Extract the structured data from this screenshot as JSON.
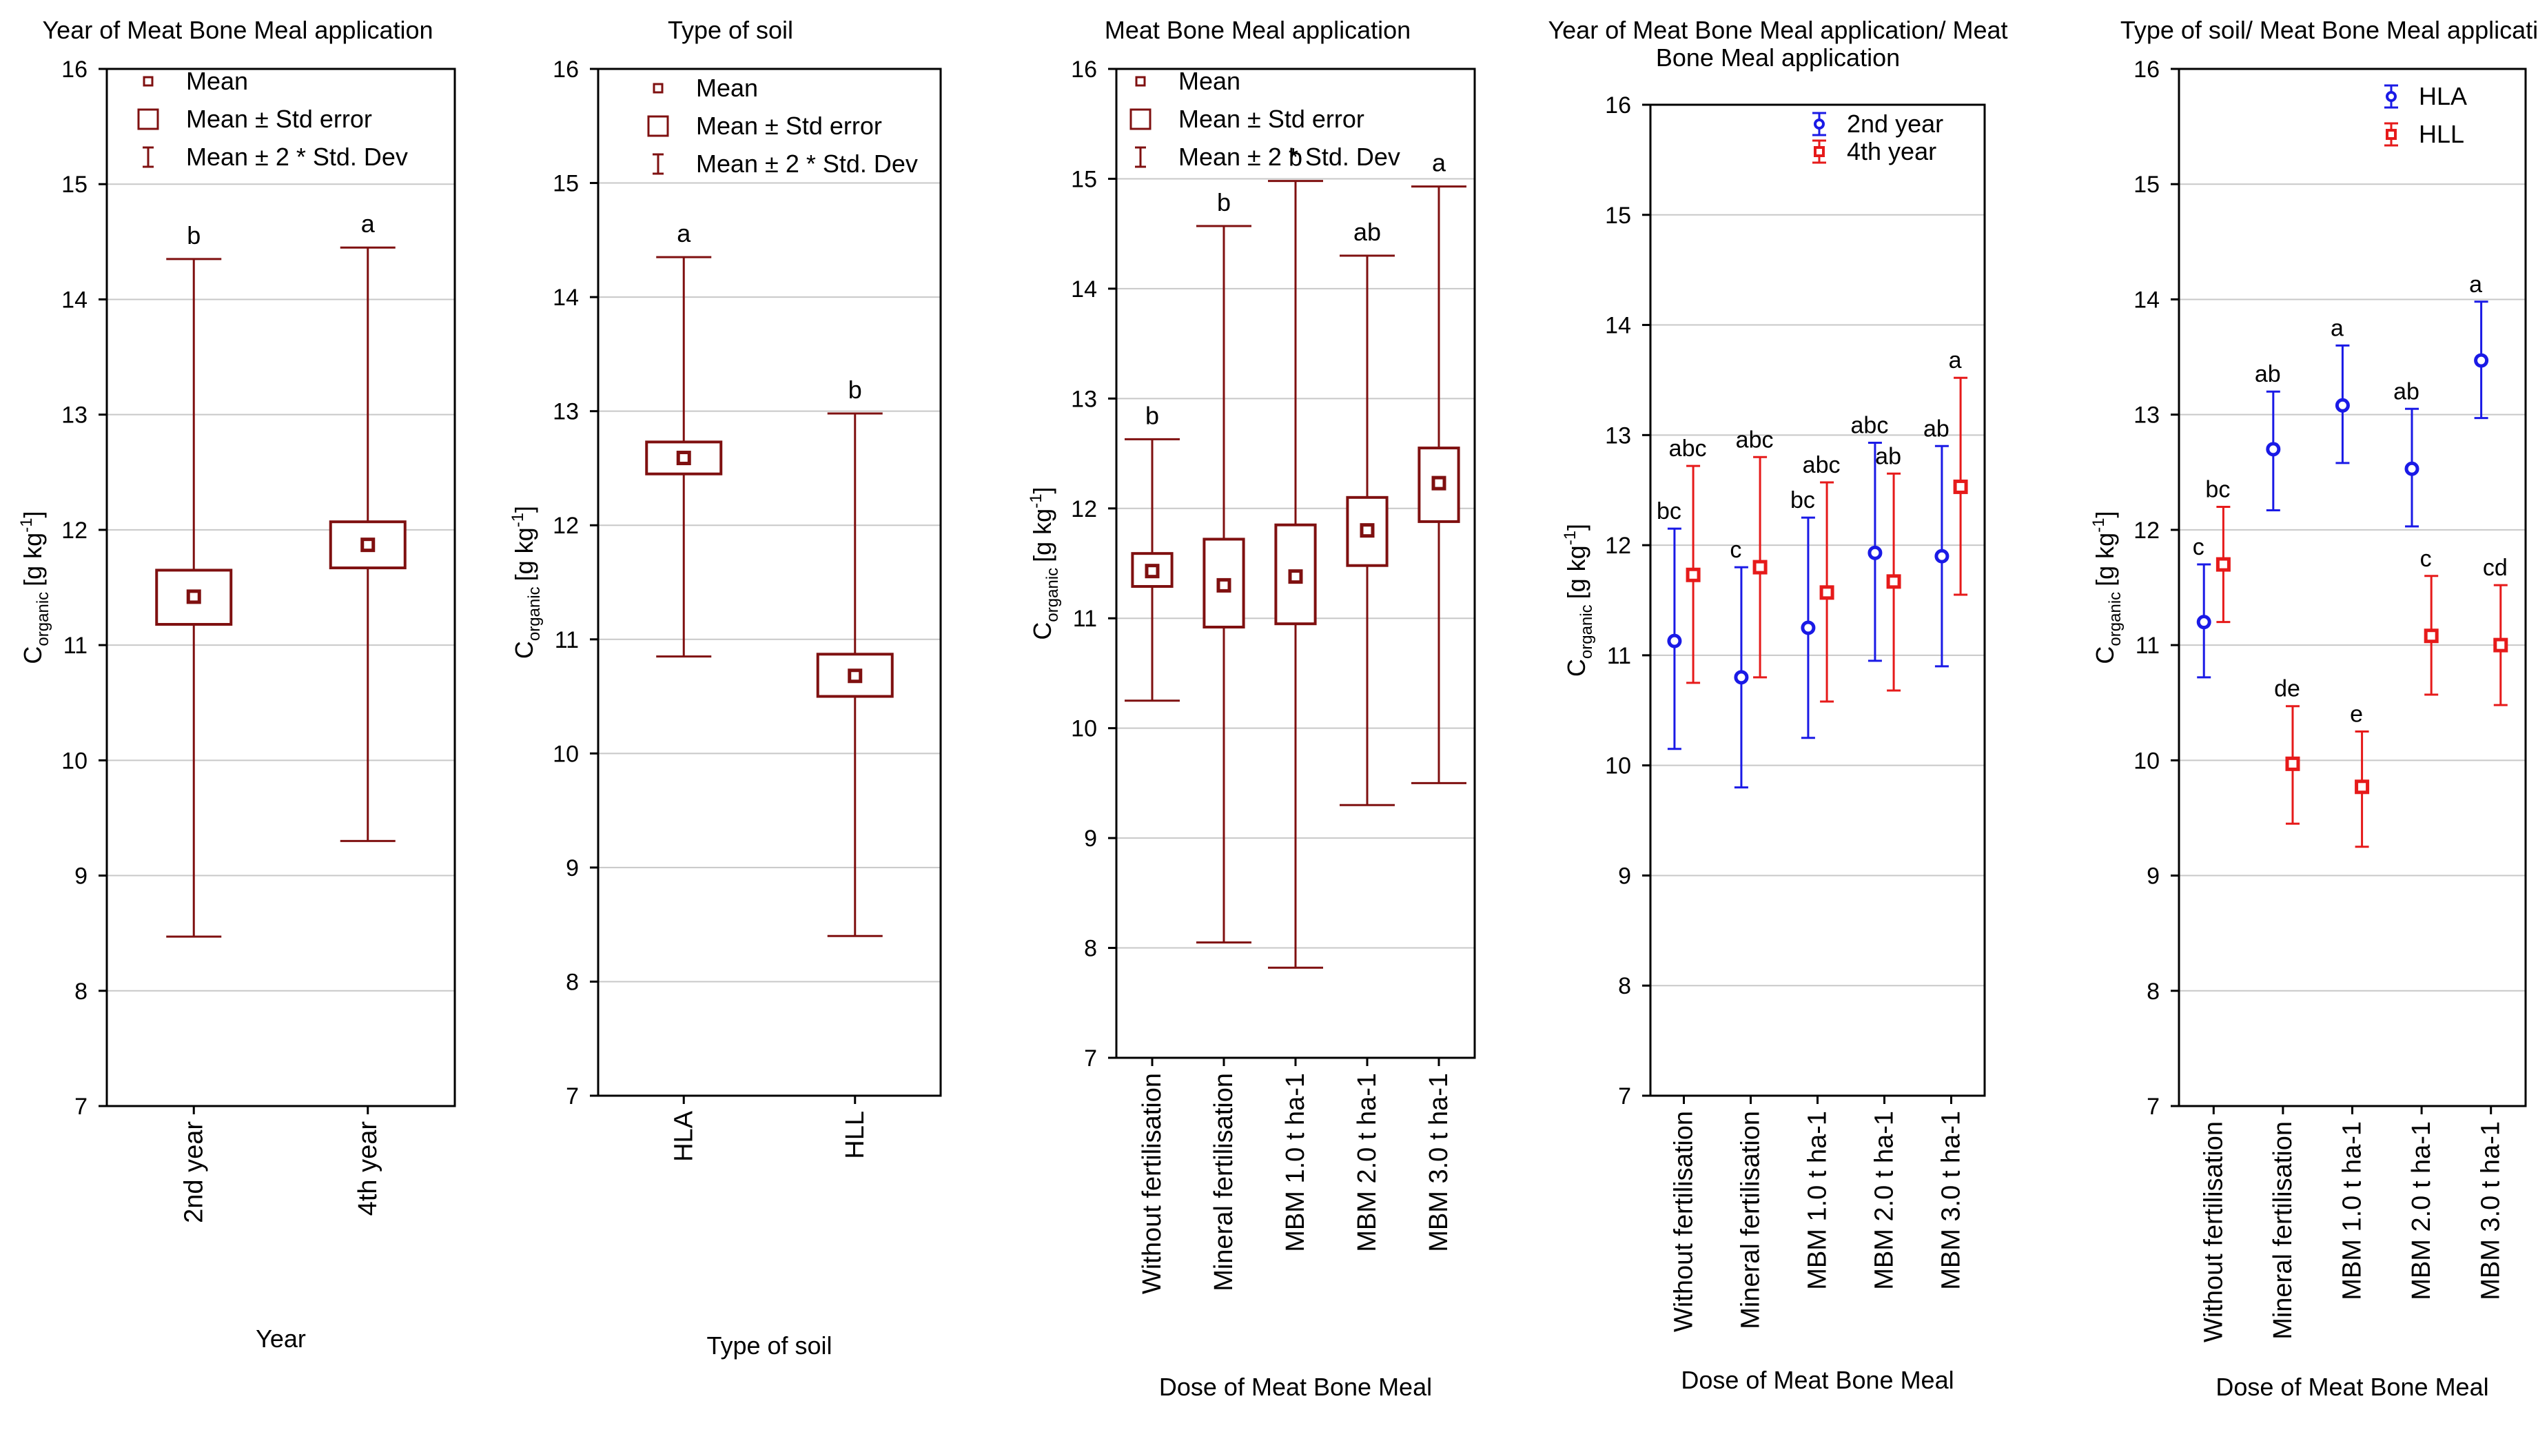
{
  "chart_data": [
    {
      "type": "box",
      "title": "Year of Meat Bone Meal application",
      "xlabel": "Year",
      "ylabel_main": "C",
      "ylabel_sub": "organic",
      "ylabel_unit": "[g kg",
      "ylabel_sup": "-1",
      "ylabel_close": "]",
      "ylim": [
        7,
        16
      ],
      "yticks": [
        7,
        8,
        9,
        10,
        11,
        12,
        13,
        14,
        15,
        16
      ],
      "color": "#7f1010",
      "legend": {
        "placement": "top-left",
        "entries": [
          "Mean",
          "Mean ± Std error",
          "Mean ± 2 * Std. Dev"
        ]
      },
      "categories": [
        "2nd year",
        "4th year"
      ],
      "mean": [
        11.42,
        11.87
      ],
      "se_low": [
        11.18,
        11.67
      ],
      "se_high": [
        11.65,
        12.07
      ],
      "sd_low": [
        8.47,
        9.3
      ],
      "sd_high": [
        14.35,
        14.45
      ],
      "letters": [
        "b",
        "a"
      ]
    },
    {
      "type": "box",
      "title": "Type of soil",
      "xlabel": "Type of soil",
      "ylabel_main": "C",
      "ylabel_sub": "organic",
      "ylabel_unit": "[g kg",
      "ylabel_sup": "-1",
      "ylabel_close": "]",
      "ylim": [
        7,
        16
      ],
      "yticks": [
        7,
        8,
        9,
        10,
        11,
        12,
        13,
        14,
        15,
        16
      ],
      "color": "#7f1010",
      "legend": {
        "placement": "top-left",
        "entries": [
          "Mean",
          "Mean ± Std error",
          "Mean ± 2 * Std. Dev"
        ]
      },
      "categories": [
        "HLA",
        "HLL"
      ],
      "mean": [
        12.59,
        10.68
      ],
      "se_low": [
        12.45,
        10.5
      ],
      "se_high": [
        12.73,
        10.87
      ],
      "sd_low": [
        10.85,
        8.4
      ],
      "sd_high": [
        14.35,
        12.98
      ],
      "letters": [
        "a",
        "b"
      ]
    },
    {
      "type": "box",
      "title": "Meat Bone Meal application",
      "xlabel": "Dose of Meat Bone Meal",
      "ylabel_main": "C",
      "ylabel_sub": "organic",
      "ylabel_unit": "[g kg",
      "ylabel_sup": "-1",
      "ylabel_close": "]",
      "ylim": [
        7,
        16
      ],
      "yticks": [
        7,
        8,
        9,
        10,
        11,
        12,
        13,
        14,
        15,
        16
      ],
      "color": "#7f1010",
      "legend": {
        "placement": "top-left",
        "entries": [
          "Mean",
          "Mean ± Std error",
          "Mean ± 2 * Std. Dev"
        ]
      },
      "categories": [
        "Without fertilisation",
        "Mineral fertilisation",
        "MBM 1.0 t ha-1",
        "MBM 2.0 t ha-1",
        "MBM 3.0 t ha-1"
      ],
      "mean": [
        11.43,
        11.3,
        11.38,
        11.8,
        12.23
      ],
      "se_low": [
        11.29,
        10.92,
        10.95,
        11.48,
        11.88
      ],
      "se_high": [
        11.59,
        11.72,
        11.85,
        12.1,
        12.55
      ],
      "sd_low": [
        10.25,
        8.05,
        7.82,
        9.3,
        9.5
      ],
      "sd_high": [
        12.63,
        14.57,
        14.98,
        14.3,
        14.93
      ],
      "letters": [
        "b",
        "b",
        "b",
        "ab",
        "a"
      ]
    },
    {
      "type": "errorbar",
      "title_lines": [
        "Year of Meat Bone Meal application/ Meat",
        "Bone Meal application"
      ],
      "xlabel": "Dose of Meat Bone Meal",
      "ylabel_main": "C",
      "ylabel_sub": "organic",
      "ylabel_unit": "[g kg",
      "ylabel_sup": "-1",
      "ylabel_close": "]",
      "ylim": [
        7,
        16
      ],
      "yticks": [
        7,
        8,
        9,
        10,
        11,
        12,
        13,
        14,
        15,
        16
      ],
      "legend": {
        "placement": "top-right"
      },
      "categories": [
        "Without fertilisation",
        "Mineral fertilisation",
        "MBM 1.0 t ha-1",
        "MBM 2.0 t ha-1",
        "MBM 3.0 t ha-1"
      ],
      "series": [
        {
          "name": "2nd year",
          "color": "#1a1ae6",
          "marker": "circle",
          "values": [
            11.13,
            10.8,
            11.25,
            11.93,
            11.9
          ],
          "low": [
            10.15,
            9.8,
            10.25,
            10.95,
            10.9
          ],
          "high": [
            12.15,
            11.8,
            12.25,
            12.93,
            12.9
          ],
          "letters": [
            "bc",
            "c",
            "bc",
            "abc",
            "ab"
          ]
        },
        {
          "name": "4th year",
          "color": "#e61a1a",
          "marker": "square",
          "values": [
            11.73,
            11.8,
            11.57,
            11.67,
            12.53
          ],
          "low": [
            10.75,
            10.8,
            10.58,
            10.68,
            11.55
          ],
          "high": [
            12.72,
            12.8,
            12.57,
            12.65,
            13.52
          ],
          "letters": [
            "abc",
            "abc",
            "abc",
            "ab",
            "a"
          ]
        }
      ]
    },
    {
      "type": "errorbar",
      "title": "Type of soil/ Meat Bone Meal application",
      "xlabel": "Dose of Meat Bone Meal",
      "ylabel_main": "C",
      "ylabel_sub": "organic",
      "ylabel_unit": "[g kg",
      "ylabel_sup": "-1",
      "ylabel_close": "]",
      "ylim": [
        7,
        16
      ],
      "yticks": [
        7,
        8,
        9,
        10,
        11,
        12,
        13,
        14,
        15,
        16
      ],
      "legend": {
        "placement": "top-right"
      },
      "categories": [
        "Without fertilisation",
        "Mineral fertilisation",
        "MBM 1.0 t ha-1",
        "MBM 2.0 t ha-1",
        "MBM 3.0 t ha-1"
      ],
      "series": [
        {
          "name": "HLA",
          "color": "#1a1ae6",
          "marker": "circle",
          "values": [
            11.2,
            12.7,
            13.08,
            12.53,
            13.47
          ],
          "low": [
            10.72,
            12.17,
            12.58,
            12.03,
            12.97
          ],
          "high": [
            11.7,
            13.2,
            13.6,
            13.05,
            13.98
          ],
          "letters": [
            "c",
            "ab",
            "a",
            "ab",
            "a"
          ]
        },
        {
          "name": "HLL",
          "color": "#e61a1a",
          "marker": "square",
          "values": [
            11.7,
            9.97,
            9.77,
            11.08,
            11.0
          ],
          "low": [
            11.2,
            9.45,
            9.25,
            10.57,
            10.48
          ],
          "high": [
            12.2,
            10.47,
            10.25,
            11.6,
            11.52
          ],
          "letters": [
            "bc",
            "de",
            "e",
            "c",
            "cd"
          ]
        }
      ]
    }
  ]
}
